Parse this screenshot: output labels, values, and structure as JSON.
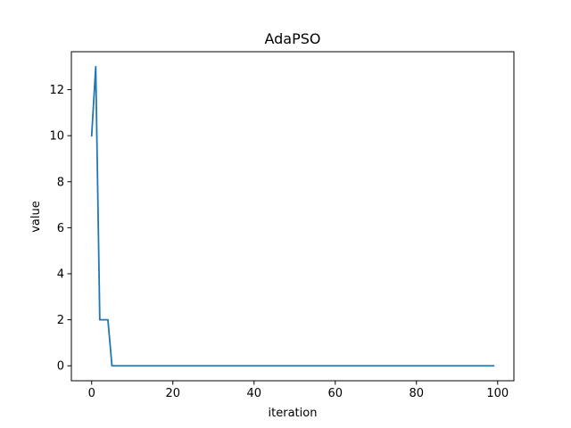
{
  "chart_data": {
    "type": "line",
    "title": "AdaPSO",
    "xlabel": "iteration",
    "ylabel": "value",
    "xlim": [
      -5,
      104
    ],
    "ylim": [
      -0.65,
      13.65
    ],
    "xticks": [
      0,
      20,
      40,
      60,
      80,
      100
    ],
    "yticks": [
      0,
      2,
      4,
      6,
      8,
      10,
      12
    ],
    "grid": false,
    "series": [
      {
        "color": "#1f77b4",
        "x": [
          0,
          1,
          2,
          3,
          4,
          5,
          6,
          99
        ],
        "y": [
          10,
          13,
          2,
          2,
          2,
          0,
          0,
          0
        ]
      }
    ]
  }
}
